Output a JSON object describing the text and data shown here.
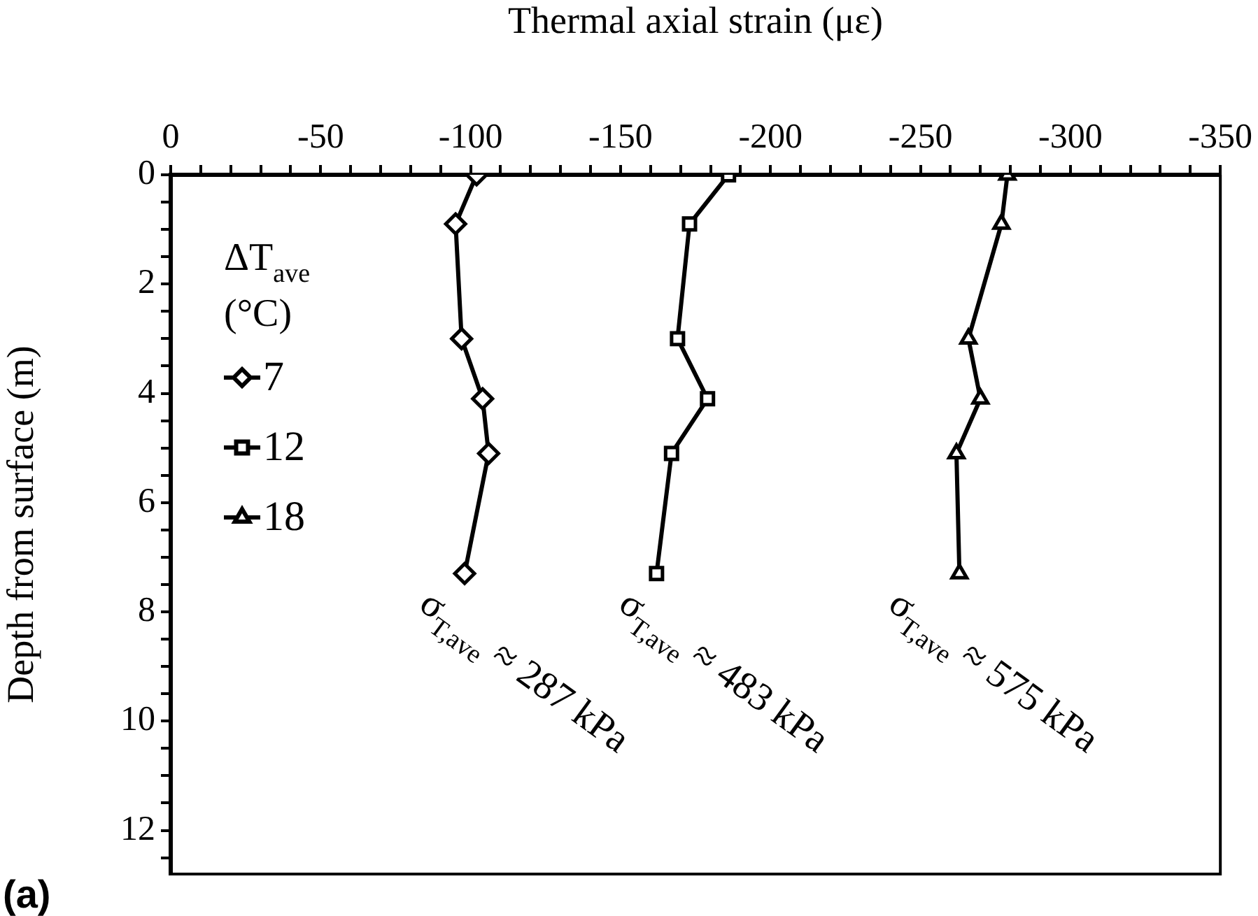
{
  "chart_data": {
    "type": "line",
    "xlabel": "Thermal axial strain (με)",
    "ylabel": "Depth from surface (m)",
    "legend_title": "ΔT$_{ave}$ (°C)",
    "legend": "top left",
    "grid": false,
    "xlim": [
      0,
      -350
    ],
    "ylim": [
      12.8,
      0
    ],
    "xticks": [
      0,
      {
        "value": -10,
        "label": null
      },
      {
        "value": -20,
        "label": null
      },
      {
        "value": -30,
        "label": null
      },
      {
        "value": -40,
        "label": null
      },
      -50,
      {
        "value": -60,
        "label": null
      },
      {
        "value": -70,
        "label": null
      },
      {
        "value": -80,
        "label": null
      },
      {
        "value": -90,
        "label": null
      },
      -100,
      {
        "value": -110,
        "label": null
      },
      {
        "value": -120,
        "label": null
      },
      {
        "value": -130,
        "label": null
      },
      {
        "value": -140,
        "label": null
      },
      -150,
      {
        "value": -160,
        "label": null
      },
      {
        "value": -170,
        "label": null
      },
      {
        "value": -180,
        "label": null
      },
      {
        "value": -190,
        "label": null
      },
      -200,
      {
        "value": -210,
        "label": null
      },
      {
        "value": -220,
        "label": null
      },
      {
        "value": -230,
        "label": null
      },
      {
        "value": -240,
        "label": null
      },
      -250,
      {
        "value": -260,
        "label": null
      },
      {
        "value": -270,
        "label": null
      },
      {
        "value": -280,
        "label": null
      },
      {
        "value": -290,
        "label": null
      },
      -300,
      {
        "value": -310,
        "label": null
      },
      {
        "value": -320,
        "label": null
      },
      {
        "value": -330,
        "label": null
      },
      {
        "value": -340,
        "label": null
      },
      -350
    ],
    "yticks": [
      0,
      {
        "value": 0.5,
        "label": null
      },
      {
        "value": 1,
        "label": null
      },
      {
        "value": 1.5,
        "label": null
      },
      2,
      {
        "value": 2.5,
        "label": null
      },
      {
        "value": 3,
        "label": null
      },
      {
        "value": 3.5,
        "label": null
      },
      4,
      {
        "value": 4.5,
        "label": null
      },
      {
        "value": 5,
        "label": null
      },
      {
        "value": 5.5,
        "label": null
      },
      6,
      {
        "value": 6.5,
        "label": null
      },
      {
        "value": 7,
        "label": null
      },
      {
        "value": 7.5,
        "label": null
      },
      8,
      {
        "value": 8.5,
        "label": null
      },
      {
        "value": 9,
        "label": null
      },
      {
        "value": 9.5,
        "label": null
      },
      10,
      {
        "value": 10.5,
        "label": null
      },
      {
        "value": 11,
        "label": null
      },
      {
        "value": 11.5,
        "label": null
      },
      12,
      {
        "value": 12.5,
        "label": null
      }
    ],
    "series": [
      {
        "name": "7",
        "color": "#000000",
        "marker": "diamond",
        "x": [
          -102,
          -95,
          -97,
          -104,
          -106,
          -98
        ],
        "values": [
          0,
          0.9,
          3.0,
          4.1,
          5.1,
          7.3
        ]
      },
      {
        "name": "12",
        "color": "#000000",
        "marker": "square",
        "x": [
          -186,
          -173,
          -169,
          -179,
          -167,
          -162
        ],
        "values": [
          0,
          0.9,
          3.0,
          4.1,
          5.1,
          7.3
        ]
      },
      {
        "name": "18",
        "color": "#000000",
        "marker": "triangle",
        "x": [
          -279,
          -277,
          -266,
          -270,
          -262,
          -263
        ],
        "values": [
          0,
          0.9,
          3.0,
          4.1,
          5.1,
          7.3
        ]
      }
    ],
    "line_style": "solid",
    "annotations": [
      "σ$_{T,ave}$ ≈ 287 kPa",
      "σ$_{T,ave}$ ≈ 483 kPa",
      "σ$_{T,ave}$ ≈ 575 kPa",
      "(a)"
    ]
  }
}
